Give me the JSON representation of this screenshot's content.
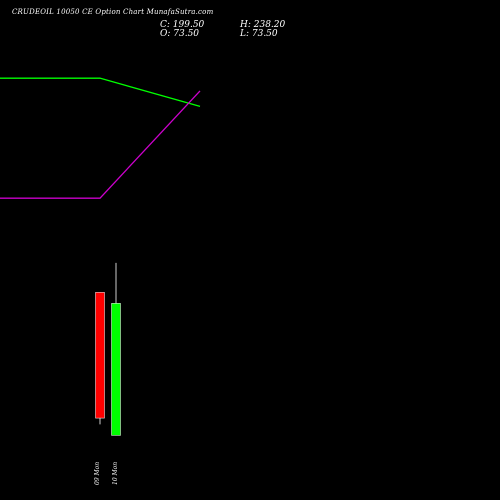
{
  "chart_data": {
    "type": "candlestick",
    "title": "CRUDEOIL 10050 CE Option Chart MunafaSutra.com",
    "ohlc": {
      "close_label": "C: 199.50",
      "high_label": "H: 238.20",
      "open_label": "O: 73.50",
      "low_label": "L: 73.50"
    },
    "x_ticks": [
      "09 Mon",
      "10 Mon"
    ],
    "candles": [
      {
        "x": "09 Mon",
        "open": 210,
        "close": 90,
        "high": 210,
        "low": 84,
        "color": "#ff0000"
      },
      {
        "x": "10 Mon",
        "open": 73.5,
        "close": 199.5,
        "high": 238.2,
        "low": 73.5,
        "color": "#00ff00"
      }
    ],
    "lines": [
      {
        "color": "#00ff00",
        "points": [
          [
            0,
            300
          ],
          [
            1,
            300
          ],
          [
            2,
            269
          ]
        ]
      },
      {
        "color": "#cc00cc",
        "points": [
          [
            0,
            168
          ],
          [
            1,
            168
          ],
          [
            2,
            286
          ]
        ]
      }
    ],
    "candle_ylim": [
      50,
      260
    ],
    "line_ylim": [
      100,
      320
    ]
  }
}
